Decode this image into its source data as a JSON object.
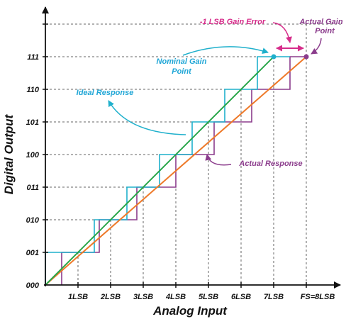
{
  "x_axis": {
    "title": "Analog Input",
    "ticks": [
      "1LSB",
      "2LSB",
      "3LSB",
      "4LSB",
      "5LSB",
      "6LSB",
      "7LSB",
      "FS=8LSB"
    ]
  },
  "y_axis": {
    "title": "Digital Output",
    "ticks": [
      "000",
      "001",
      "010",
      "011",
      "100",
      "101",
      "110",
      "111"
    ]
  },
  "annotations": {
    "gain_error": "-1 LSB Gain Error",
    "actual_gain_point": [
      "Actual Gain",
      "Point"
    ],
    "nominal_gain_point": [
      "Nominal Gain",
      "Point"
    ],
    "ideal_response": "Ideal Response",
    "actual_response": "Actual Response"
  },
  "colors": {
    "ideal_line": "#2aa64a",
    "actual_line": "#ee7a2a",
    "ideal_steps": "#1fb0cc",
    "actual_steps": "#8b3c8c",
    "gain_error": "#d62c8a",
    "ideal_label": "#1fa6d6",
    "actual_label": "#8b3c8c",
    "axis": "#111111"
  }
}
